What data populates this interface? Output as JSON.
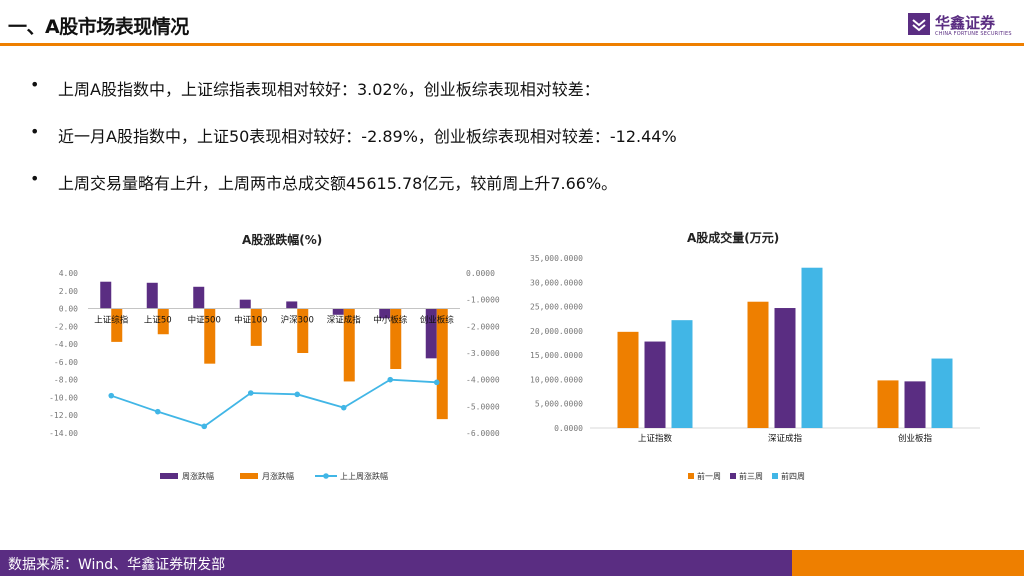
{
  "header": {
    "title": "一、A股市场表现情况"
  },
  "logo": {
    "name": "华鑫证券",
    "subtitle": "CHINA FORTUNE SECURITIES"
  },
  "bullets": [
    "上周A股指数中，上证综指表现相对较好：3.02%，创业板综表现相对较差：",
    "近一月A股指数中，上证50表现相对较好：-2.89%，创业板综表现相对较差：-12.44%",
    "上周交易量略有上升，上周两市总成交额45615.78亿元，较前周上升7.66%。"
  ],
  "footer": {
    "source": "数据来源：Wind、华鑫证券研发部"
  },
  "colors": {
    "accent_orange": "#ee7f00",
    "brand_purple": "#5a2d82",
    "light_blue": "#41b6e6"
  },
  "chart_data": [
    {
      "type": "bar",
      "title": "A股涨跌幅(%)",
      "categories": [
        "上证综指",
        "上证50",
        "中证500",
        "中证100",
        "沪深300",
        "深证成指",
        "中小板综",
        "创业板综"
      ],
      "series": [
        {
          "name": "周涨跌幅",
          "type": "bar",
          "axis": "left",
          "color": "#5a2d82",
          "values": [
            3.02,
            2.9,
            2.45,
            1.0,
            0.8,
            -0.7,
            -1.1,
            -5.6
          ]
        },
        {
          "name": "月涨跌幅",
          "type": "bar",
          "axis": "left",
          "color": "#ee7f00",
          "values": [
            -3.75,
            -2.89,
            -6.2,
            -4.2,
            -5.0,
            -8.2,
            -6.8,
            -12.44
          ]
        },
        {
          "name": "上上周涨跌幅",
          "type": "line",
          "axis": "right",
          "color": "#41b6e6",
          "values": [
            -4.6,
            -5.2,
            -5.75,
            -4.5,
            -4.55,
            -5.05,
            -4.0,
            -4.1
          ]
        }
      ],
      "ylim_left": [
        -14,
        4
      ],
      "yticks_left": [
        "4.00",
        "2.00",
        "0.00",
        "-2.00",
        "-4.00",
        "-6.00",
        "-8.00",
        "-10.00",
        "-12.00",
        "-14.00"
      ],
      "ylim_right": [
        -6,
        0
      ],
      "yticks_right": [
        "0.0000",
        "-1.0000",
        "-2.0000",
        "-3.0000",
        "-4.0000",
        "-5.0000",
        "-6.0000"
      ],
      "legend": "bottom",
      "grid": false
    },
    {
      "type": "bar",
      "title": "A股成交量(万元)",
      "categories": [
        "上证指数",
        "深证成指",
        "创业板指"
      ],
      "series": [
        {
          "name": "前一周",
          "color": "#ee7f00",
          "values": [
            19800000,
            26000000,
            9800000
          ]
        },
        {
          "name": "前三周",
          "color": "#5a2d82",
          "values": [
            17800000,
            24700000,
            9600000
          ]
        },
        {
          "name": "前四周",
          "color": "#41b6e6",
          "values": [
            22200000,
            33000000,
            14300000
          ]
        }
      ],
      "ylim": [
        0,
        35000000
      ],
      "yticks": [
        "35,000.0000",
        "30,000.0000",
        "25,000.0000",
        "20,000.0000",
        "15,000.0000",
        "10,000.0000",
        "5,000.0000",
        "0.0000"
      ],
      "legend": "bottom",
      "grid": false
    }
  ]
}
